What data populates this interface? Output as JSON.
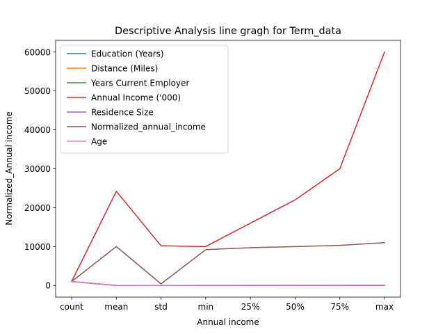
{
  "chart_data": {
    "type": "line",
    "title": "Descriptive Analysis line gragh for Term_data",
    "xlabel": "Annual income",
    "ylabel": "Normalized_Annual income",
    "categories": [
      "count",
      "mean",
      "std",
      "min",
      "25%",
      "50%",
      "75%",
      "max"
    ],
    "ylim": [
      -3000,
      63000
    ],
    "yticks": [
      0,
      10000,
      20000,
      30000,
      40000,
      50000,
      60000
    ],
    "ytick_labels": [
      "0",
      "10000",
      "20000",
      "30000",
      "40000",
      "50000",
      "60000"
    ],
    "grid": false,
    "legend_position": "top-left",
    "series": [
      {
        "name": "Education (Years)",
        "color": "#1f77b4",
        "values": [
          1000,
          15,
          3,
          10,
          13,
          15,
          18,
          20
        ]
      },
      {
        "name": "Distance (Miles)",
        "color": "#ff7f0e",
        "values": [
          1000,
          10,
          6,
          0,
          5,
          10,
          15,
          30
        ]
      },
      {
        "name": "Years Current Employer",
        "color": "#2ca02c",
        "values": [
          1000,
          6,
          5,
          0,
          2,
          5,
          9,
          25
        ]
      },
      {
        "name": "Annual Income ('000)",
        "color": "#d62728",
        "values": [
          1000,
          24200,
          10200,
          10000,
          16000,
          22000,
          30000,
          60000
        ]
      },
      {
        "name": "Residence Size",
        "color": "#9467bd",
        "values": [
          1000,
          3,
          1,
          1,
          2,
          3,
          4,
          6
        ]
      },
      {
        "name": "Normalized_annual_income",
        "color": "#8c564b",
        "values": [
          1000,
          10000,
          400,
          9200,
          9700,
          10000,
          10300,
          11000
        ]
      },
      {
        "name": "Age",
        "color": "#e377c2",
        "values": [
          1000,
          40,
          12,
          18,
          30,
          40,
          50,
          70
        ]
      }
    ]
  }
}
